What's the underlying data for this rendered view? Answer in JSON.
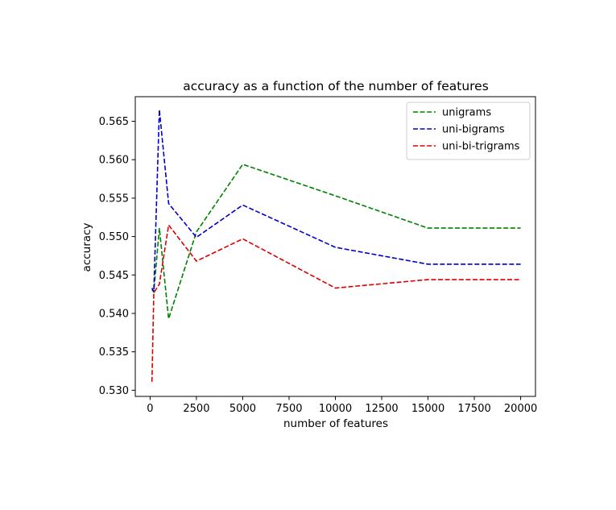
{
  "chart_data": {
    "type": "line",
    "title": "accuracy as a function of the number of features",
    "xlabel": "number of features",
    "ylabel": "accuracy",
    "xlim": [
      -800,
      20800
    ],
    "ylim": [
      0.5292,
      0.5682
    ],
    "xticks": [
      0,
      2500,
      5000,
      7500,
      10000,
      12500,
      15000,
      17500,
      20000
    ],
    "yticks": [
      0.53,
      0.535,
      0.54,
      0.545,
      0.55,
      0.555,
      0.56,
      0.565
    ],
    "x": [
      100,
      200,
      500,
      1000,
      2500,
      5000,
      10000,
      15000,
      20000
    ],
    "series": [
      {
        "name": "unigrams",
        "color": "#008000",
        "values": [
          0.5431,
          0.5428,
          0.5511,
          0.5393,
          0.5506,
          0.5594,
          0.5553,
          0.5511,
          0.5511
        ]
      },
      {
        "name": "uni-bigrams",
        "color": "#0000cc",
        "values": [
          0.5433,
          0.5428,
          0.5665,
          0.5543,
          0.5499,
          0.5541,
          0.5486,
          0.5464,
          0.5464
        ]
      },
      {
        "name": "uni-bi-trigrams",
        "color": "#dd0000",
        "values": [
          0.5311,
          0.5427,
          0.5438,
          0.5515,
          0.5468,
          0.5497,
          0.5433,
          0.5444,
          0.5444
        ]
      }
    ],
    "grid": false,
    "legend_position": "top-right",
    "line_style": "dashed"
  }
}
